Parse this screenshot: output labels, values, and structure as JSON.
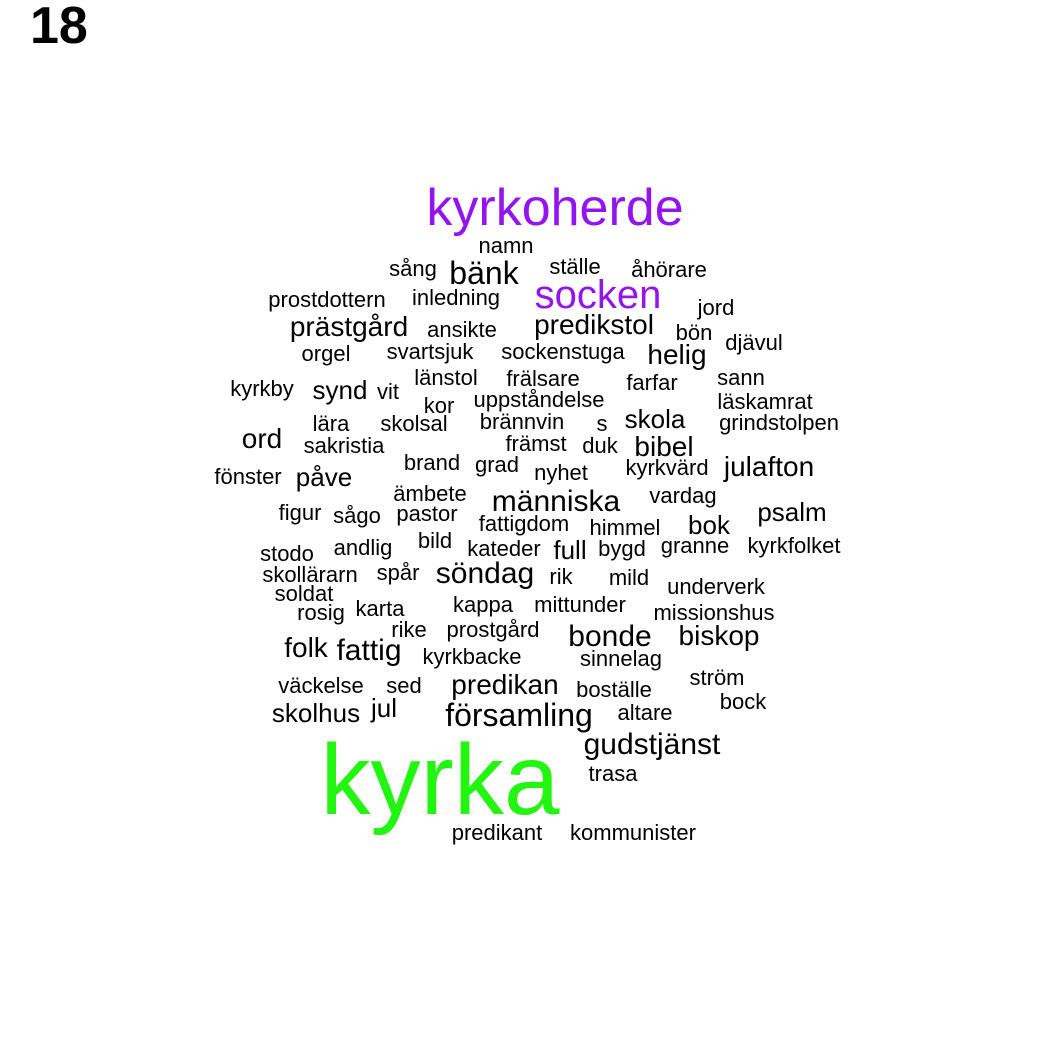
{
  "figure_number": "18",
  "colors": {
    "purple": "#9414f0",
    "green": "#22f50f",
    "black": "#000000"
  },
  "words": [
    {
      "text": "kyrka",
      "color": "green"
    },
    {
      "text": "kyrkoherde",
      "color": "purple"
    },
    {
      "text": "socken",
      "color": "purple"
    },
    {
      "text": "namn",
      "color": "black"
    },
    {
      "text": "sång",
      "color": "black"
    },
    {
      "text": "bänk",
      "color": "black"
    },
    {
      "text": "ställe",
      "color": "black"
    },
    {
      "text": "åhörare",
      "color": "black"
    },
    {
      "text": "prostdottern",
      "color": "black"
    },
    {
      "text": "inledning",
      "color": "black"
    },
    {
      "text": "jord",
      "color": "black"
    },
    {
      "text": "prästgård",
      "color": "black"
    },
    {
      "text": "ansikte",
      "color": "black"
    },
    {
      "text": "predikstol",
      "color": "black"
    },
    {
      "text": "bön",
      "color": "black"
    },
    {
      "text": "djävul",
      "color": "black"
    },
    {
      "text": "orgel",
      "color": "black"
    },
    {
      "text": "svartsjuk",
      "color": "black"
    },
    {
      "text": "sockenstuga",
      "color": "black"
    },
    {
      "text": "helig",
      "color": "black"
    },
    {
      "text": "länstol",
      "color": "black"
    },
    {
      "text": "frälsare",
      "color": "black"
    },
    {
      "text": "farfar",
      "color": "black"
    },
    {
      "text": "sann",
      "color": "black"
    },
    {
      "text": "kyrkby",
      "color": "black"
    },
    {
      "text": "synd",
      "color": "black"
    },
    {
      "text": "vit",
      "color": "black"
    },
    {
      "text": "uppståndelse",
      "color": "black"
    },
    {
      "text": "kor",
      "color": "black"
    },
    {
      "text": "läskamrat",
      "color": "black"
    },
    {
      "text": "lära",
      "color": "black"
    },
    {
      "text": "skolsal",
      "color": "black"
    },
    {
      "text": "brännvin",
      "color": "black"
    },
    {
      "text": "s",
      "color": "black"
    },
    {
      "text": "skola",
      "color": "black"
    },
    {
      "text": "grindstolpen",
      "color": "black"
    },
    {
      "text": "ord",
      "color": "black"
    },
    {
      "text": "sakristia",
      "color": "black"
    },
    {
      "text": "främst",
      "color": "black"
    },
    {
      "text": "duk",
      "color": "black"
    },
    {
      "text": "bibel",
      "color": "black"
    },
    {
      "text": "brand",
      "color": "black"
    },
    {
      "text": "grad",
      "color": "black"
    },
    {
      "text": "kyrkvärd",
      "color": "black"
    },
    {
      "text": "julafton",
      "color": "black"
    },
    {
      "text": "fönster",
      "color": "black"
    },
    {
      "text": "påve",
      "color": "black"
    },
    {
      "text": "nyhet",
      "color": "black"
    },
    {
      "text": "ämbete",
      "color": "black"
    },
    {
      "text": "vardag",
      "color": "black"
    },
    {
      "text": "människa",
      "color": "black"
    },
    {
      "text": "figur",
      "color": "black"
    },
    {
      "text": "sågo",
      "color": "black"
    },
    {
      "text": "pastor",
      "color": "black"
    },
    {
      "text": "fattigdom",
      "color": "black"
    },
    {
      "text": "himmel",
      "color": "black"
    },
    {
      "text": "bok",
      "color": "black"
    },
    {
      "text": "psalm",
      "color": "black"
    },
    {
      "text": "stodo",
      "color": "black"
    },
    {
      "text": "andlig",
      "color": "black"
    },
    {
      "text": "bild",
      "color": "black"
    },
    {
      "text": "kateder",
      "color": "black"
    },
    {
      "text": "full",
      "color": "black"
    },
    {
      "text": "bygd",
      "color": "black"
    },
    {
      "text": "granne",
      "color": "black"
    },
    {
      "text": "kyrkfolket",
      "color": "black"
    },
    {
      "text": "skollärarn",
      "color": "black"
    },
    {
      "text": "spår",
      "color": "black"
    },
    {
      "text": "söndag",
      "color": "black"
    },
    {
      "text": "rik",
      "color": "black"
    },
    {
      "text": "mild",
      "color": "black"
    },
    {
      "text": "underverk",
      "color": "black"
    },
    {
      "text": "soldat",
      "color": "black"
    },
    {
      "text": "rosig",
      "color": "black"
    },
    {
      "text": "karta",
      "color": "black"
    },
    {
      "text": "kappa",
      "color": "black"
    },
    {
      "text": "mittunder",
      "color": "black"
    },
    {
      "text": "missionshus",
      "color": "black"
    },
    {
      "text": "rike",
      "color": "black"
    },
    {
      "text": "prostgård",
      "color": "black"
    },
    {
      "text": "bonde",
      "color": "black"
    },
    {
      "text": "biskop",
      "color": "black"
    },
    {
      "text": "folk",
      "color": "black"
    },
    {
      "text": "fattig",
      "color": "black"
    },
    {
      "text": "kyrkbacke",
      "color": "black"
    },
    {
      "text": "sinnelag",
      "color": "black"
    },
    {
      "text": "väckelse",
      "color": "black"
    },
    {
      "text": "sed",
      "color": "black"
    },
    {
      "text": "predikan",
      "color": "black"
    },
    {
      "text": "boställe",
      "color": "black"
    },
    {
      "text": "ström",
      "color": "black"
    },
    {
      "text": "bock",
      "color": "black"
    },
    {
      "text": "skolhus",
      "color": "black"
    },
    {
      "text": "jul",
      "color": "black"
    },
    {
      "text": "församling",
      "color": "black"
    },
    {
      "text": "altare",
      "color": "black"
    },
    {
      "text": "gudstjänst",
      "color": "black"
    },
    {
      "text": "trasa",
      "color": "black"
    },
    {
      "text": "predikant",
      "color": "black"
    },
    {
      "text": "kommunister",
      "color": "black"
    }
  ]
}
